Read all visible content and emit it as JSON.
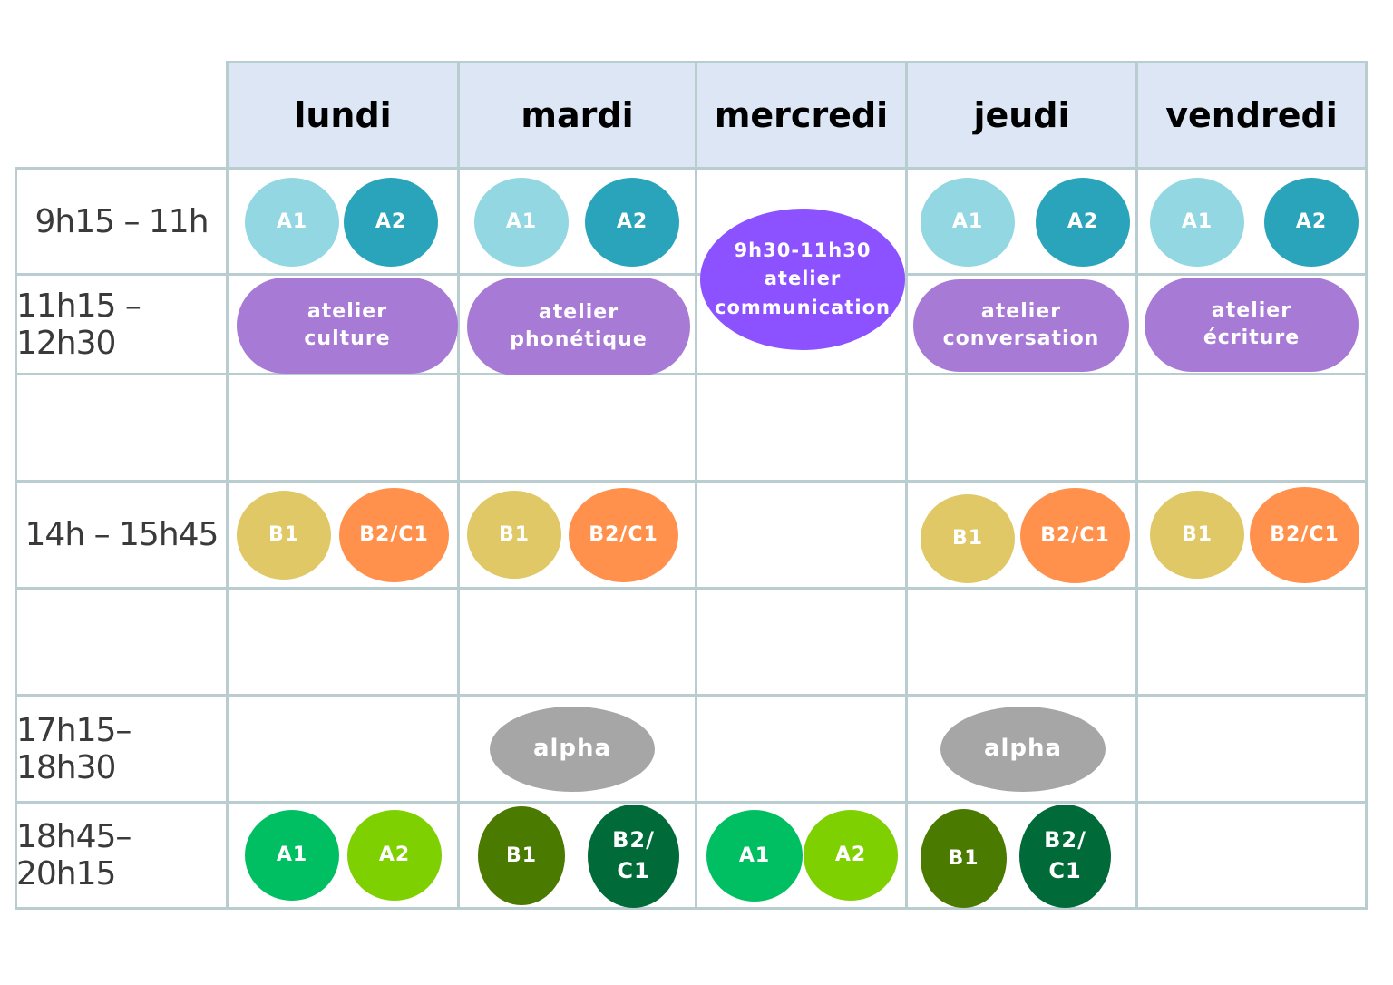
{
  "days": [
    "lundi",
    "mardi",
    "mercredi",
    "jeudi",
    "vendredi"
  ],
  "times": [
    "9h15 – 11h",
    "11h15 – 12h30",
    "",
    "14h – 15h45",
    "",
    "17h15–18h30",
    "18h45–20h15"
  ],
  "colors": {
    "a1_light": "#93d7e3",
    "a2_teal": "#2aa4ba",
    "atelier": "#a77ad6",
    "communication": "#8c52ff",
    "b1_yellow": "#dfc865",
    "b2c1_orange": "#ff914d",
    "alpha_gray": "#a6a6a6",
    "evening_a1": "#00bf63",
    "evening_a2": "#7ed000",
    "evening_b1": "#4b7a00",
    "evening_b2c1": "#006b38",
    "header_bg": "#dce6f4",
    "grid": "#b9cdd1"
  },
  "slots": [
    {
      "day": "lundi",
      "time": "9h15 – 11h",
      "label": "A1",
      "color": "a1_light"
    },
    {
      "day": "lundi",
      "time": "9h15 – 11h",
      "label": "A2",
      "color": "a2_teal"
    },
    {
      "day": "mardi",
      "time": "9h15 – 11h",
      "label": "A1",
      "color": "a1_light"
    },
    {
      "day": "mardi",
      "time": "9h15 – 11h",
      "label": "A2",
      "color": "a2_teal"
    },
    {
      "day": "mercredi",
      "time": "9h15 – 11h",
      "label": "9h30-11h30\natelier\ncommunication",
      "color": "communication"
    },
    {
      "day": "jeudi",
      "time": "9h15 – 11h",
      "label": "A1",
      "color": "a1_light"
    },
    {
      "day": "jeudi",
      "time": "9h15 – 11h",
      "label": "A2",
      "color": "a2_teal"
    },
    {
      "day": "vendredi",
      "time": "9h15 – 11h",
      "label": "A1",
      "color": "a1_light"
    },
    {
      "day": "vendredi",
      "time": "9h15 – 11h",
      "label": "A2",
      "color": "a2_teal"
    },
    {
      "day": "lundi",
      "time": "11h15 – 12h30",
      "label": "atelier\nculture",
      "color": "atelier"
    },
    {
      "day": "mardi",
      "time": "11h15 – 12h30",
      "label": "atelier\nphonétique",
      "color": "atelier"
    },
    {
      "day": "jeudi",
      "time": "11h15 – 12h30",
      "label": "atelier\nconversation",
      "color": "atelier"
    },
    {
      "day": "vendredi",
      "time": "11h15 – 12h30",
      "label": "atelier\nécriture",
      "color": "atelier"
    },
    {
      "day": "lundi",
      "time": "14h – 15h45",
      "label": "B1",
      "color": "b1_yellow"
    },
    {
      "day": "lundi",
      "time": "14h – 15h45",
      "label": "B2/C1",
      "color": "b2c1_orange"
    },
    {
      "day": "mardi",
      "time": "14h – 15h45",
      "label": "B1",
      "color": "b1_yellow"
    },
    {
      "day": "mardi",
      "time": "14h – 15h45",
      "label": "B2/C1",
      "color": "b2c1_orange"
    },
    {
      "day": "jeudi",
      "time": "14h – 15h45",
      "label": "B1",
      "color": "b1_yellow"
    },
    {
      "day": "jeudi",
      "time": "14h – 15h45",
      "label": "B2/C1",
      "color": "b2c1_orange"
    },
    {
      "day": "vendredi",
      "time": "14h – 15h45",
      "label": "B1",
      "color": "b1_yellow"
    },
    {
      "day": "vendredi",
      "time": "14h – 15h45",
      "label": "B2/C1",
      "color": "b2c1_orange"
    },
    {
      "day": "mardi",
      "time": "17h15–18h30",
      "label": "alpha",
      "color": "alpha_gray"
    },
    {
      "day": "jeudi",
      "time": "17h15–18h30",
      "label": "alpha",
      "color": "alpha_gray"
    },
    {
      "day": "lundi",
      "time": "18h45–20h15",
      "label": "A1",
      "color": "evening_a1"
    },
    {
      "day": "lundi",
      "time": "18h45–20h15",
      "label": "A2",
      "color": "evening_a2"
    },
    {
      "day": "mardi",
      "time": "18h45–20h15",
      "label": "B1",
      "color": "evening_b1"
    },
    {
      "day": "mardi",
      "time": "18h45–20h15",
      "label": "B2/\nC1",
      "color": "evening_b2c1"
    },
    {
      "day": "mercredi",
      "time": "18h45–20h15",
      "label": "A1",
      "color": "evening_a1"
    },
    {
      "day": "mercredi",
      "time": "18h45–20h15",
      "label": "A2",
      "color": "evening_a2"
    },
    {
      "day": "jeudi",
      "time": "18h45–20h15",
      "label": "B1",
      "color": "evening_b1"
    },
    {
      "day": "jeudi",
      "time": "18h45–20h15",
      "label": "B2/\nC1",
      "color": "evening_b2c1"
    }
  ]
}
